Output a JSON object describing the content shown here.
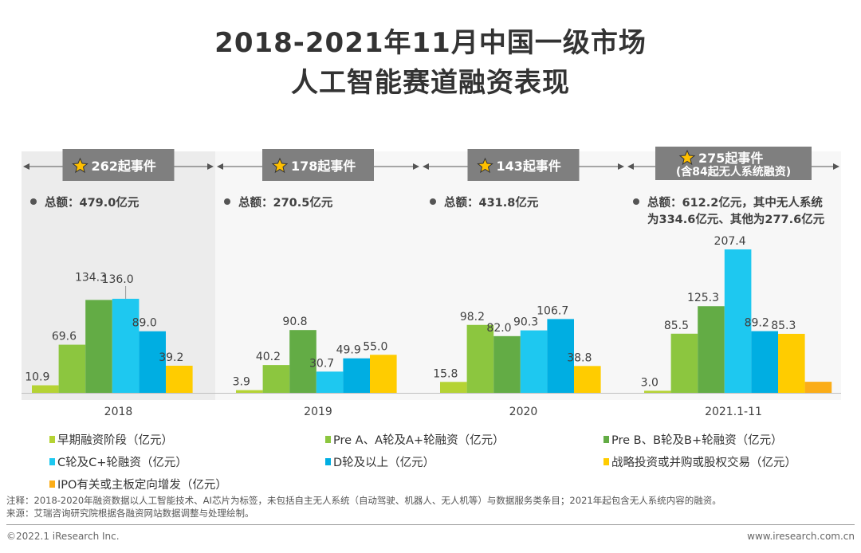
{
  "title": [
    "2018-2021年11月中国一级市场",
    "人工智能赛道融资表现"
  ],
  "chart_data": {
    "type": "bar",
    "categories": [
      "2018",
      "2019",
      "2020",
      "2021.1-11"
    ],
    "series": [
      {
        "name": "早期融资阶段（亿元）",
        "color": "#b5d334",
        "values": [
          10.9,
          3.9,
          15.8,
          3.0
        ]
      },
      {
        "name": "Pre A、A轮及A+轮融资（亿元）",
        "color": "#8cc63f",
        "values": [
          69.6,
          40.2,
          98.2,
          85.5
        ]
      },
      {
        "name": "Pre B、B轮及B+轮融资（亿元）",
        "color": "#63ac45",
        "values": [
          134.3,
          90.8,
          82.0,
          125.3
        ]
      },
      {
        "name": "C轮及C+轮融资（亿元）",
        "color": "#1ec8f0",
        "values": [
          136.0,
          30.7,
          90.3,
          207.4
        ]
      },
      {
        "name": "D轮及以上（亿元）",
        "color": "#00aee2",
        "values": [
          89.0,
          49.9,
          106.7,
          89.2
        ]
      },
      {
        "name": "战略投资或并购或股权交易（亿元）",
        "color": "#ffcc00",
        "values": [
          39.2,
          55.0,
          38.8,
          85.3
        ]
      },
      {
        "name": "IPO有关或主板定向增发（亿元）",
        "color": "#fbad18",
        "values": [
          null,
          null,
          null,
          16
        ]
      }
    ],
    "events": [
      "262起事件",
      "178起事件",
      "143起事件",
      "275起事件"
    ],
    "events_sub": [
      "",
      "",
      "",
      "(含84起无人系统融资)"
    ],
    "totals": [
      [
        "总额：479.0亿元"
      ],
      [
        "总额：270.5亿元"
      ],
      [
        "总额：431.8亿元"
      ],
      [
        "总额：612.2亿元，其中无人系统",
        "为334.6亿元、其他为277.6亿元"
      ]
    ]
  },
  "note": "注释：2018-2020年融资数据以人工智能技术、AI芯片为标签，未包括自主无人系统（自动驾驶、机器人、无人机等）与数据服务类条目；2021年起包含无人系统内容的融资。",
  "source": "来源：艾瑞咨询研究院根据各融资网站数据调整与处理绘制。",
  "copyright": "©2022.1 iResearch Inc.",
  "website": "www.iresearch.com.cn"
}
